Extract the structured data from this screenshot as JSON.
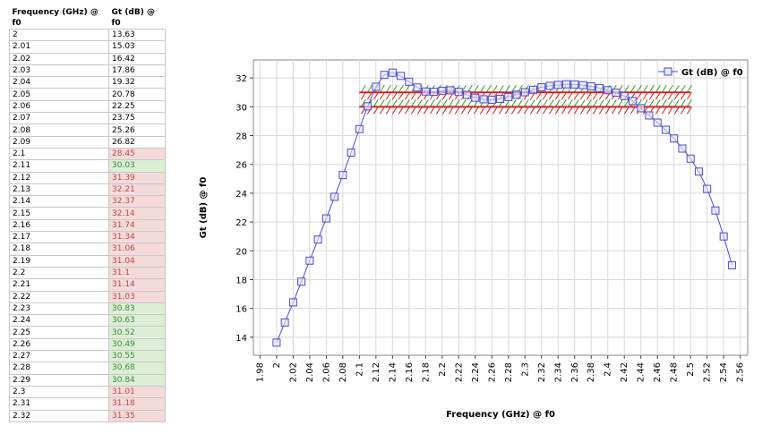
{
  "table": {
    "columns": [
      "Frequency (GHz) @ f0",
      "Gt (dB) @ f0"
    ],
    "rows": [
      [
        "2",
        "13.63"
      ],
      [
        "2.01",
        "15.03"
      ],
      [
        "2.02",
        "16.42"
      ],
      [
        "2.03",
        "17.86"
      ],
      [
        "2.04",
        "19.32"
      ],
      [
        "2.05",
        "20.78"
      ],
      [
        "2.06",
        "22.25"
      ],
      [
        "2.07",
        "23.75"
      ],
      [
        "2.08",
        "25.26"
      ],
      [
        "2.09",
        "26.82"
      ],
      [
        "2.1",
        "28.45"
      ],
      [
        "2.11",
        "30.03"
      ],
      [
        "2.12",
        "31.39"
      ],
      [
        "2.13",
        "32.21"
      ],
      [
        "2.14",
        "32.37"
      ],
      [
        "2.15",
        "32.14"
      ],
      [
        "2.16",
        "31.74"
      ],
      [
        "2.17",
        "31.34"
      ],
      [
        "2.18",
        "31.06"
      ],
      [
        "2.19",
        "31.04"
      ],
      [
        "2.2",
        "31.1"
      ],
      [
        "2.21",
        "31.14"
      ],
      [
        "2.22",
        "31.03"
      ],
      [
        "2.23",
        "30.83"
      ],
      [
        "2.24",
        "30.63"
      ],
      [
        "2.25",
        "30.52"
      ],
      [
        "2.26",
        "30.49"
      ],
      [
        "2.27",
        "30.55"
      ],
      [
        "2.28",
        "30.68"
      ],
      [
        "2.29",
        "30.84"
      ],
      [
        "2.3",
        "31.01"
      ],
      [
        "2.31",
        "31.18"
      ],
      [
        "2.32",
        "31.35"
      ]
    ]
  },
  "chart_data": {
    "type": "line",
    "x_label": "Frequency (GHz) @ f0",
    "y_label": "Gt (dB) @ f0",
    "x": [
      2,
      2.01,
      2.02,
      2.03,
      2.04,
      2.05,
      2.06,
      2.07,
      2.08,
      2.09,
      2.1,
      2.11,
      2.12,
      2.13,
      2.14,
      2.15,
      2.16,
      2.17,
      2.18,
      2.19,
      2.2,
      2.21,
      2.22,
      2.23,
      2.24,
      2.25,
      2.26,
      2.27,
      2.28,
      2.29,
      2.3,
      2.31,
      2.32,
      2.33,
      2.34,
      2.35,
      2.36,
      2.37,
      2.38,
      2.39,
      2.4,
      2.41,
      2.42,
      2.43,
      2.44,
      2.45,
      2.46,
      2.47,
      2.48,
      2.49,
      2.5,
      2.51,
      2.52,
      2.53,
      2.54,
      2.55
    ],
    "series": [
      {
        "name": "Gt (dB) @ f0",
        "color": "#4a4ad0",
        "values": [
          13.63,
          15.03,
          16.42,
          17.86,
          19.32,
          20.78,
          22.25,
          23.75,
          25.26,
          26.82,
          28.45,
          30.03,
          31.39,
          32.21,
          32.37,
          32.14,
          31.74,
          31.34,
          31.06,
          31.04,
          31.1,
          31.14,
          31.03,
          30.83,
          30.63,
          30.52,
          30.49,
          30.55,
          30.68,
          30.84,
          31.01,
          31.18,
          31.35,
          31.45,
          31.52,
          31.56,
          31.55,
          31.5,
          31.42,
          31.3,
          31.15,
          30.98,
          30.75,
          30.4,
          29.9,
          29.4,
          28.9,
          28.4,
          27.8,
          27.1,
          26.4,
          25.5,
          24.3,
          22.8,
          21.0,
          19.0
        ]
      }
    ],
    "limits": [
      {
        "value": 31,
        "from": 2.1,
        "to": 2.5
      },
      {
        "value": 30,
        "from": 2.1,
        "to": 2.5
      }
    ],
    "xlim": [
      1.972,
      2.569
    ],
    "ylim": [
      12.75,
      33.25
    ],
    "xticks": [
      1.98,
      2,
      2.02,
      2.04,
      2.06,
      2.08,
      2.1,
      2.12,
      2.14,
      2.16,
      2.18,
      2.2,
      2.22,
      2.24,
      2.26,
      2.28,
      2.3,
      2.32,
      2.34,
      2.36,
      2.38,
      2.4,
      2.42,
      2.44,
      2.46,
      2.48,
      2.5,
      2.52,
      2.54,
      2.56
    ],
    "yticks": [
      14,
      16,
      18,
      20,
      22,
      24,
      26,
      28,
      30,
      32
    ],
    "grid": true,
    "legend": "top-right"
  }
}
